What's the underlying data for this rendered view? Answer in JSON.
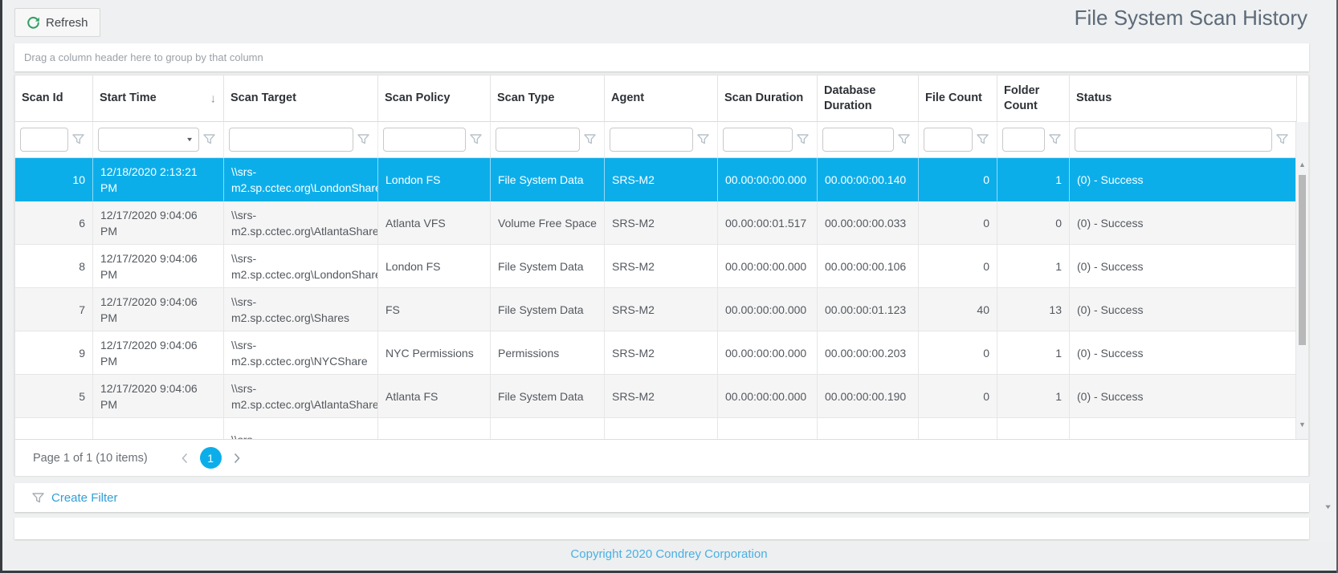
{
  "window": {
    "title": "File System Scan History"
  },
  "toolbar": {
    "refresh_label": "Refresh"
  },
  "group_panel": {
    "hint": "Drag a column header here to group by that column"
  },
  "grid": {
    "columns": [
      {
        "key": "scan_id",
        "label": "Scan Id",
        "align": "right",
        "filter": "text"
      },
      {
        "key": "start_time",
        "label": "Start Time",
        "sort": "desc",
        "filter": "date"
      },
      {
        "key": "scan_target",
        "label": "Scan Target",
        "filter": "text"
      },
      {
        "key": "scan_policy",
        "label": "Scan Policy",
        "filter": "text"
      },
      {
        "key": "scan_type",
        "label": "Scan Type",
        "filter": "text"
      },
      {
        "key": "agent",
        "label": "Agent",
        "filter": "text"
      },
      {
        "key": "scan_duration",
        "label": "Scan Duration",
        "filter": "text"
      },
      {
        "key": "database_duration",
        "label": "Database Duration",
        "filter": "text"
      },
      {
        "key": "file_count",
        "label": "File Count",
        "align": "right",
        "filter": "text"
      },
      {
        "key": "folder_count",
        "label": "Folder Count",
        "align": "right",
        "filter": "text"
      },
      {
        "key": "status",
        "label": "Status",
        "filter": "text"
      }
    ],
    "rows": [
      {
        "selected": true,
        "scan_id": "10",
        "start_time": "12/18/2020 2:13:21 PM",
        "scan_target": "\\\\srs-m2.sp.cctec.org\\LondonShare",
        "scan_policy": "London FS",
        "scan_type": "File System Data",
        "agent": "SRS-M2",
        "scan_duration": "00.00:00:00.000",
        "database_duration": "00.00:00:00.140",
        "file_count": "0",
        "folder_count": "1",
        "status": "(0) - Success"
      },
      {
        "scan_id": "6",
        "start_time": "12/17/2020 9:04:06 PM",
        "scan_target": "\\\\srs-m2.sp.cctec.org\\AtlantaShare",
        "scan_policy": "Atlanta VFS",
        "scan_type": "Volume Free Space",
        "agent": "SRS-M2",
        "scan_duration": "00.00:00:01.517",
        "database_duration": "00.00:00:00.033",
        "file_count": "0",
        "folder_count": "0",
        "status": "(0) - Success"
      },
      {
        "scan_id": "8",
        "start_time": "12/17/2020 9:04:06 PM",
        "scan_target": "\\\\srs-m2.sp.cctec.org\\LondonShare",
        "scan_policy": "London FS",
        "scan_type": "File System Data",
        "agent": "SRS-M2",
        "scan_duration": "00.00:00:00.000",
        "database_duration": "00.00:00:00.106",
        "file_count": "0",
        "folder_count": "1",
        "status": "(0) - Success"
      },
      {
        "scan_id": "7",
        "start_time": "12/17/2020 9:04:06 PM",
        "scan_target": "\\\\srs-m2.sp.cctec.org\\Shares",
        "scan_policy": "FS",
        "scan_type": "File System Data",
        "agent": "SRS-M2",
        "scan_duration": "00.00:00:00.000",
        "database_duration": "00.00:00:01.123",
        "file_count": "40",
        "folder_count": "13",
        "status": "(0) - Success"
      },
      {
        "scan_id": "9",
        "start_time": "12/17/2020 9:04:06 PM",
        "scan_target": "\\\\srs-m2.sp.cctec.org\\NYCShare",
        "scan_policy": "NYC Permissions",
        "scan_type": "Permissions",
        "agent": "SRS-M2",
        "scan_duration": "00.00:00:00.000",
        "database_duration": "00.00:00:00.203",
        "file_count": "0",
        "folder_count": "1",
        "status": "(0) - Success"
      },
      {
        "scan_id": "5",
        "start_time": "12/17/2020 9:04:06 PM",
        "scan_target": "\\\\srs-m2.sp.cctec.org\\AtlantaShare",
        "scan_policy": "Atlanta FS",
        "scan_type": "File System Data",
        "agent": "SRS-M2",
        "scan_duration": "00.00:00:00.000",
        "database_duration": "00.00:00:00.190",
        "file_count": "0",
        "folder_count": "1",
        "status": "(0) - Success"
      },
      {
        "partial": true,
        "scan_target": "\\\\srs-"
      }
    ]
  },
  "pager": {
    "summary": "Page 1 of 1 (10 items)",
    "current_page": "1"
  },
  "filter_bar": {
    "create_filter_label": "Create Filter"
  },
  "footer": {
    "copyright": "Copyright 2020 Condrey Corporation"
  },
  "colors": {
    "accent_blue": "#0caeea",
    "link_blue": "#2f9fd6",
    "copyright_blue": "#49b0e4",
    "refresh_green": "#35a166",
    "selection_text": "#ffffff"
  }
}
